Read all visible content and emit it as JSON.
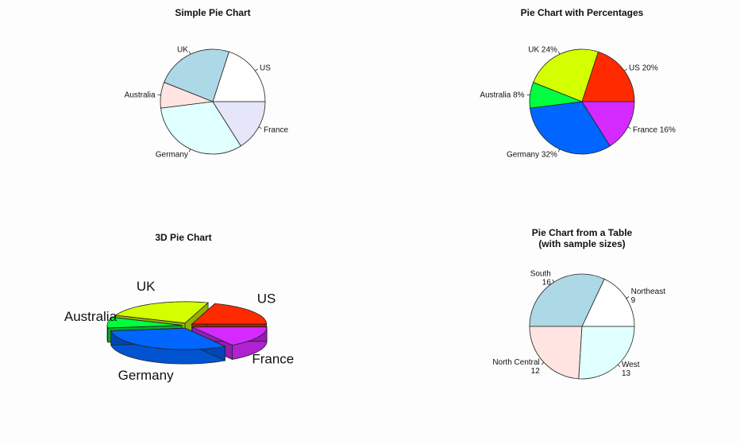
{
  "chart_data": [
    {
      "type": "pie",
      "title": "Simple Pie Chart",
      "categories": [
        "US",
        "UK",
        "Australia",
        "Germany",
        "France"
      ],
      "values": [
        10,
        12,
        4,
        16,
        8
      ],
      "colors": [
        "#ffffff",
        "#add8e6",
        "#ffe4e1",
        "#e0ffff",
        "#e6e6fa"
      ]
    },
    {
      "type": "pie",
      "title": "Pie Chart with Percentages",
      "categories": [
        "US",
        "UK",
        "Australia",
        "Germany",
        "France"
      ],
      "values": [
        10,
        12,
        4,
        16,
        8
      ],
      "labels": [
        "US 20%",
        "UK 24%",
        "Australia 8%",
        "Germany 32%",
        "France 16%"
      ],
      "colors": [
        "#ff2a00",
        "#d4ff00",
        "#00ff40",
        "#0066ff",
        "#d42aff"
      ]
    },
    {
      "type": "pie",
      "subtype": "3d",
      "title": "3D Pie Chart",
      "categories": [
        "US",
        "UK",
        "Australia",
        "Germany",
        "France"
      ],
      "values": [
        10,
        12,
        4,
        16,
        8
      ],
      "colors": [
        "#ff2a00",
        "#d4ff00",
        "#00ff40",
        "#0066ff",
        "#d42aff"
      ]
    },
    {
      "type": "pie",
      "title": "Pie Chart from a Table",
      "subtitle": "(with sample sizes)",
      "categories": [
        "Northeast",
        "South",
        "North Central",
        "West"
      ],
      "values": [
        9,
        16,
        12,
        13
      ],
      "labels": [
        "Northeast\n9",
        "South\n16",
        "North Central\n12",
        "West\n13"
      ],
      "colors": [
        "#ffffff",
        "#add8e6",
        "#ffe4e1",
        "#e0ffff"
      ]
    }
  ]
}
